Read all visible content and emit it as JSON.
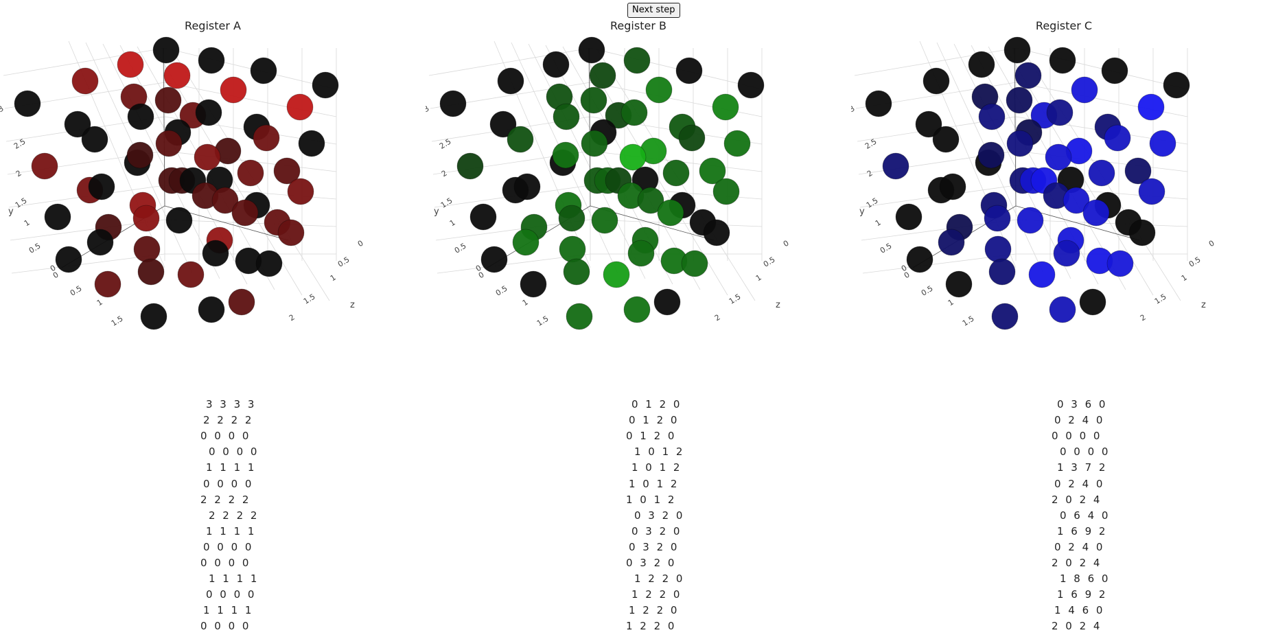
{
  "toolbar": {
    "next_label": "Next step"
  },
  "panels": [
    {
      "title": "Register A",
      "color": "#c01818",
      "rows": [
        "3 3 3 3",
        "2 2 2 2",
        "0 0 0 0",
        "0 0 0 0",
        "1 1 1 1",
        "0 0 0 0",
        "2 2 2 2",
        "2 2 2 2",
        "1 1 1 1",
        "0 0 0 0",
        "0 0 0 0",
        "1 1 1 1",
        "0 0 0 0",
        "1 1 1 1",
        "0 0 0 0"
      ]
    },
    {
      "title": "Register B",
      "color": "#18b818",
      "rows": [
        "0 1 2 0",
        "0 1 2 0",
        "0 1 2 0",
        "1 0 1 2",
        "1 0 1 2",
        "1 0 1 2",
        "1 0 1 2",
        "0 3 2 0",
        "0 3 2 0",
        "0 3 2 0",
        "0 3 2 0",
        "1 2 2 0",
        "1 2 2 0",
        "1 2 2 0",
        "1 2 2 0"
      ]
    },
    {
      "title": "Register C",
      "color": "#1818f0",
      "rows": [
        "0 3 6 0",
        "0 2 4 0",
        "0 0 0 0",
        "0 0 0 0",
        "1 3 7 2",
        "0 2 4 0",
        "2 0 2 4",
        "0 6 4 0",
        "1 6 9 2",
        "0 2 4 0",
        "2 0 2 4",
        "1 8 6 0",
        "1 6 9 2",
        "1 4 6 0",
        "2 0 2 4"
      ]
    }
  ],
  "axes": {
    "y_ticks": [
      "0",
      "0.5",
      "1",
      "1.5",
      "2",
      "2.5",
      "3"
    ],
    "x_ticks": [
      "0",
      "0.5",
      "1",
      "1.5"
    ],
    "z_ticks": [
      "0",
      "0.5",
      "1",
      "1.5",
      "2"
    ],
    "y_label": "y",
    "z_label": "z"
  }
}
